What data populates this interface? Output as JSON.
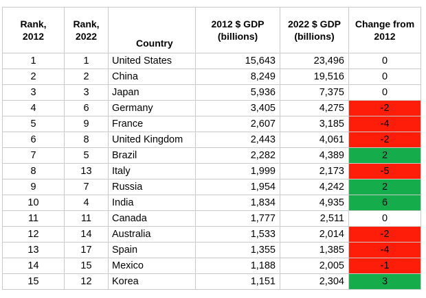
{
  "table": {
    "headers": {
      "rank_2012": [
        "Rank,",
        "2012"
      ],
      "rank_2022": [
        "Rank,",
        "2022"
      ],
      "country": "Country",
      "gdp_2012": [
        "2012 $ GDP",
        "(billions)"
      ],
      "gdp_2022": [
        "2022 $ GDP",
        "(billions)"
      ],
      "change": [
        "Change from",
        "2012"
      ]
    },
    "rows": [
      {
        "rank_2012": "1",
        "rank_2022": "1",
        "country": "United States",
        "gdp_2012": "15,643",
        "gdp_2022": "23,496",
        "change": "0",
        "change_status": "neutral"
      },
      {
        "rank_2012": "2",
        "rank_2022": "2",
        "country": "China",
        "gdp_2012": "8,249",
        "gdp_2022": "19,516",
        "change": "0",
        "change_status": "neutral"
      },
      {
        "rank_2012": "3",
        "rank_2022": "3",
        "country": "Japan",
        "gdp_2012": "5,936",
        "gdp_2022": "7,375",
        "change": "0",
        "change_status": "neutral"
      },
      {
        "rank_2012": "4",
        "rank_2022": "6",
        "country": "Germany",
        "gdp_2012": "3,405",
        "gdp_2022": "4,275",
        "change": "-2",
        "change_status": "negative"
      },
      {
        "rank_2012": "5",
        "rank_2022": "9",
        "country": "France",
        "gdp_2012": "2,607",
        "gdp_2022": "3,185",
        "change": "-4",
        "change_status": "negative"
      },
      {
        "rank_2012": "6",
        "rank_2022": "8",
        "country": "United Kingdom",
        "gdp_2012": "2,443",
        "gdp_2022": "4,061",
        "change": "-2",
        "change_status": "negative"
      },
      {
        "rank_2012": "7",
        "rank_2022": "5",
        "country": "Brazil",
        "gdp_2012": "2,282",
        "gdp_2022": "4,389",
        "change": "2",
        "change_status": "positive"
      },
      {
        "rank_2012": "8",
        "rank_2022": "13",
        "country": "Italy",
        "gdp_2012": "1,999",
        "gdp_2022": "2,173",
        "change": "-5",
        "change_status": "negative"
      },
      {
        "rank_2012": "9",
        "rank_2022": "7",
        "country": "Russia",
        "gdp_2012": "1,954",
        "gdp_2022": "4,242",
        "change": "2",
        "change_status": "positive"
      },
      {
        "rank_2012": "10",
        "rank_2022": "4",
        "country": "India",
        "gdp_2012": "1,834",
        "gdp_2022": "4,935",
        "change": "6",
        "change_status": "positive"
      },
      {
        "rank_2012": "11",
        "rank_2022": "11",
        "country": "Canada",
        "gdp_2012": "1,777",
        "gdp_2022": "2,511",
        "change": "0",
        "change_status": "neutral"
      },
      {
        "rank_2012": "12",
        "rank_2022": "14",
        "country": "Australia",
        "gdp_2012": "1,533",
        "gdp_2022": "2,014",
        "change": "-2",
        "change_status": "negative"
      },
      {
        "rank_2012": "13",
        "rank_2022": "17",
        "country": "Spain",
        "gdp_2012": "1,355",
        "gdp_2022": "1,385",
        "change": "-4",
        "change_status": "negative"
      },
      {
        "rank_2012": "14",
        "rank_2022": "15",
        "country": "Mexico",
        "gdp_2012": "1,188",
        "gdp_2022": "2,005",
        "change": "-1",
        "change_status": "negative"
      },
      {
        "rank_2012": "15",
        "rank_2022": "12",
        "country": "Korea",
        "gdp_2012": "1,151",
        "gdp_2022": "2,304",
        "change": "3",
        "change_status": "positive"
      }
    ]
  },
  "colors": {
    "negative": "#fe1d08",
    "positive": "#15ad4b",
    "grid": "#c9c9c9"
  }
}
